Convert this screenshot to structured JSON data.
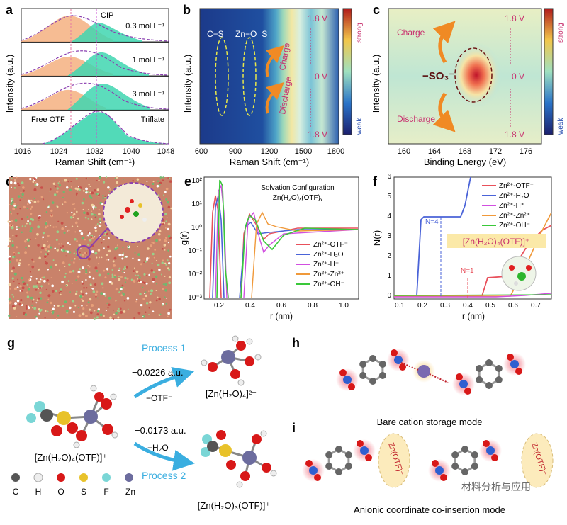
{
  "panels": {
    "a": {
      "label": "a",
      "ylabel": "Intensity (a.u.)",
      "xlabel": "Raman Shift (cm⁻¹)",
      "xticks": [
        "1016",
        "1024",
        "1032",
        "1040",
        "1048"
      ],
      "cip_label": "CIP",
      "free_label": "Free OTF⁻",
      "rows": [
        "0.3 mol L⁻¹",
        "1 mol L⁻¹",
        "3 mol L⁻¹",
        "Triflate"
      ]
    },
    "b": {
      "label": "b",
      "ylabel": "Intensity (a.u.)",
      "xlabel": "Raman Shift (cm⁻¹)",
      "xticks": [
        "600",
        "900",
        "1200",
        "1500",
        "1800"
      ],
      "cs_label": "C−S",
      "zn_label": "Zn−O=S",
      "charge": "Charge",
      "discharge": "Discharge",
      "v_top": "1.8 V",
      "v_mid": "0 V",
      "v_bot": "1.8 V",
      "cbar_strong": "strong",
      "cbar_weak": "weak"
    },
    "c": {
      "label": "c",
      "ylabel": "Intensity (a.u.)",
      "xlabel": "Binding Energy (eV)",
      "xticks": [
        "160",
        "164",
        "168",
        "172",
        "176"
      ],
      "so3_label": "−SO₃⁻",
      "charge": "Charge",
      "discharge": "Discharge",
      "v_top": "1.8 V",
      "v_mid": "0 V",
      "v_bot": "1.8 V",
      "cbar_strong": "strong",
      "cbar_weak": "weak"
    },
    "d": {
      "label": "d"
    },
    "e": {
      "label": "e",
      "ylabel": "g(r)",
      "xlabel": "r (nm)",
      "title1": "Solvation Configuration",
      "title2": "Zn(H₂O)ₓ(OTF)ᵧ",
      "yticks": [
        "10²",
        "10¹",
        "10⁰",
        "10⁻¹",
        "10⁻²",
        "10⁻³"
      ],
      "xticks": [
        "0.2",
        "0.4",
        "0.6",
        "0.8",
        "1.0"
      ],
      "legend": [
        "Zn²⁺-OTF⁻",
        "Zn²⁺-H₂O",
        "Zn²⁺-H⁺",
        "Zn²⁺-Zn²⁺",
        "Zn²⁺-OH⁻"
      ]
    },
    "f": {
      "label": "f",
      "ylabel": "N(r)",
      "xlabel": "r (nm)",
      "yticks": [
        "0",
        "1",
        "2",
        "3",
        "4",
        "5",
        "6"
      ],
      "xticks": [
        "0.1",
        "0.2",
        "0.3",
        "0.4",
        "0.5",
        "0.6",
        "0.7"
      ],
      "n4": "N=4",
      "n1": "N=1",
      "legend": [
        "Zn²⁺-OTF⁻",
        "Zn²⁺-H₂O",
        "Zn²⁺-H⁺",
        "Zn²⁺-Zn²⁺",
        "Zn²⁺-OH⁻"
      ],
      "complex": "[Zn(H₂O)₄(OTF)]⁺"
    },
    "g": {
      "label": "g",
      "process1": "Process 1",
      "process2": "Process 2",
      "e1": "−0.0226 a.u.",
      "e2": "−0.0173 a.u.",
      "loss1": "−OTF⁻",
      "loss2": "−H₂O",
      "start": "[Zn(H₂O)₄(OTF)]⁺",
      "prod1": "[Zn(H₂O)₄]²⁺",
      "prod2": "[Zn(H₂O)₃(OTF)]⁺",
      "atoms": [
        "C",
        "H",
        "O",
        "S",
        "F",
        "Zn"
      ]
    },
    "h": {
      "label": "h",
      "caption": "Bare cation storage mode"
    },
    "i": {
      "label": "i",
      "caption": "Anionic coordinate co-insertion mode",
      "zn_otf": "Zn(OTF)⁺",
      "watermark": "材料分析与应用"
    }
  },
  "colors": {
    "otf": "#e8505b",
    "h2o": "#4a63d8",
    "hplus": "#d14fe0",
    "znzn": "#f0993a",
    "oh": "#3ac83a",
    "process": "#3aaee0",
    "charge": "#c8306e"
  }
}
